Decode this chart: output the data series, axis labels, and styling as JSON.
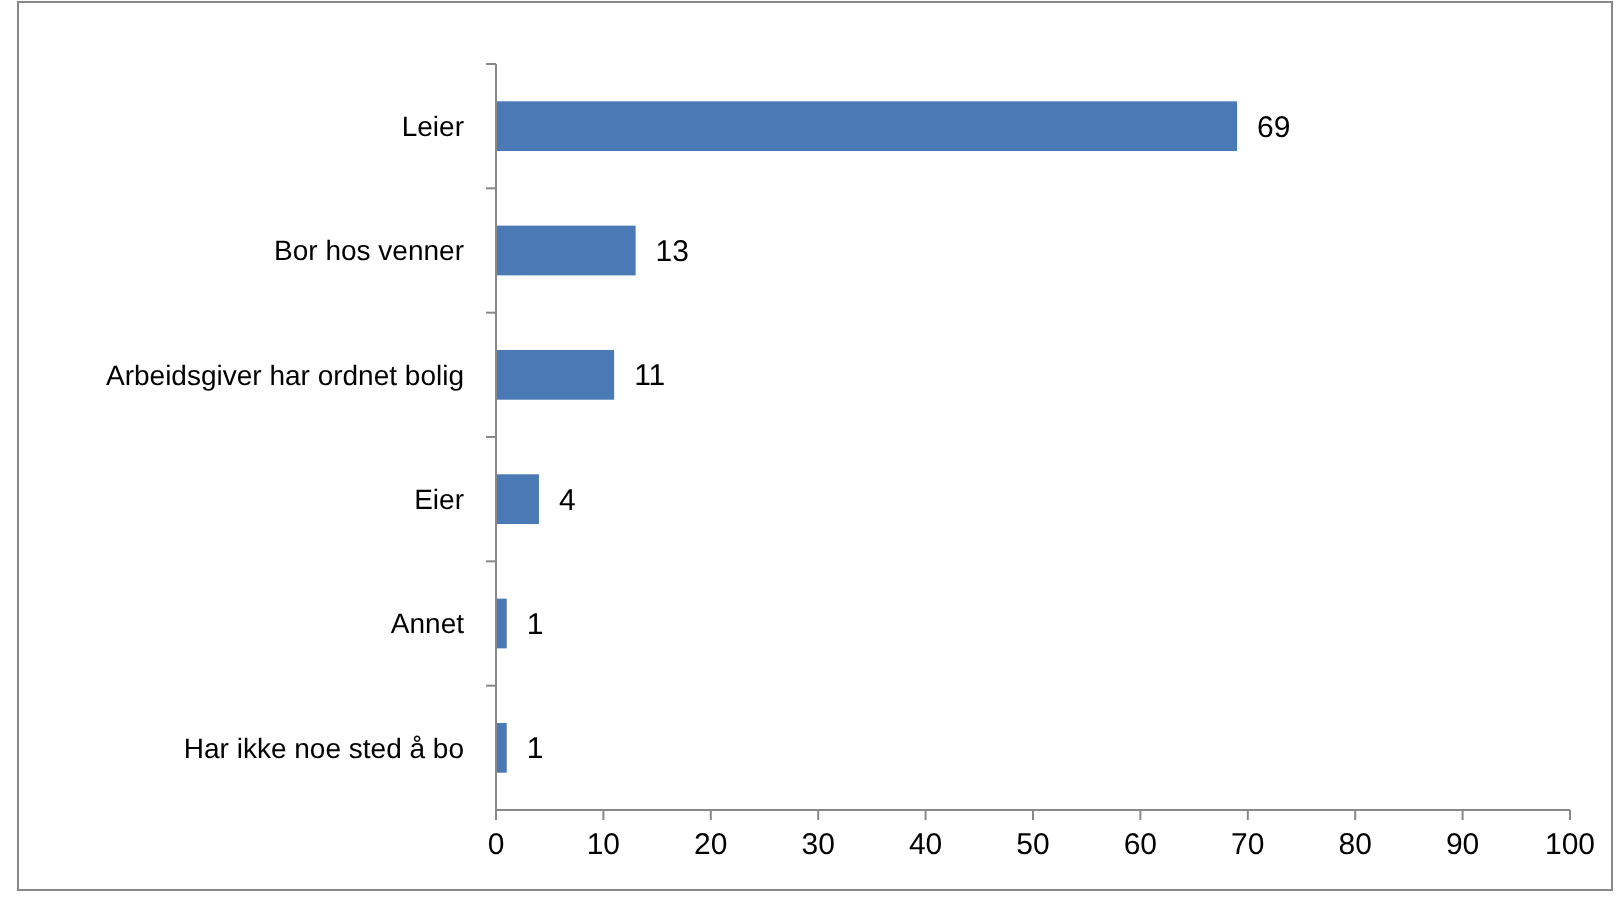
{
  "chart_data": {
    "type": "bar",
    "orientation": "horizontal",
    "categories": [
      "Leier",
      "Bor hos venner",
      "Arbeidsgiver har ordnet bolig",
      "Eier",
      "Annet",
      "Har ikke noe sted å bo"
    ],
    "values": [
      69,
      13,
      11,
      4,
      1,
      1
    ],
    "color": "#4a7ab5",
    "xlim": [
      0,
      100
    ],
    "xticks": [
      0,
      10,
      20,
      30,
      40,
      50,
      60,
      70,
      80,
      90,
      100
    ],
    "data_labels": true
  }
}
